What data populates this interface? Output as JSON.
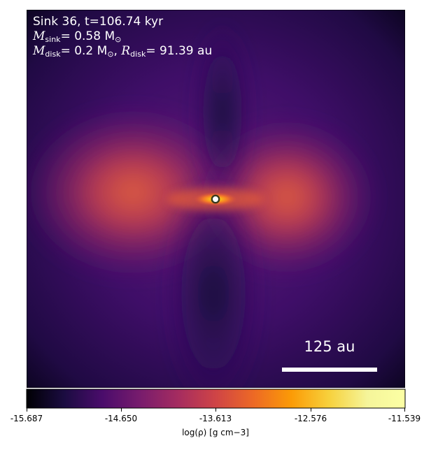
{
  "panel": {
    "title": "Sink 36, t=106.74 kyr",
    "msink_value": "= 0.58 M",
    "mdisk_value": "= 0.2 M",
    "rdisk_value": "= 91.39 au",
    "scalebar_label": "125 au"
  },
  "colorbar": {
    "colormap": "inferno",
    "label": "log(ρ) [g cm−3]",
    "tick_labels": [
      "-15.687",
      "-14.650",
      "-13.613",
      "-12.576",
      "-11.539"
    ]
  }
}
